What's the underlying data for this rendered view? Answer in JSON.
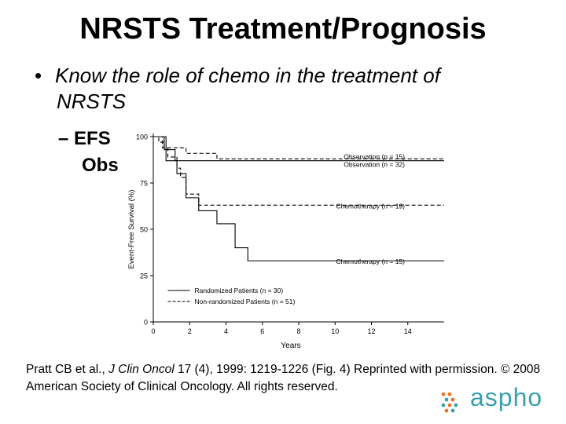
{
  "slide": {
    "title": "NRSTS Treatment/Prognosis",
    "bullet_marker": "•",
    "bullet_line1": "Know the role of chemo in the treatment of",
    "bullet_line2": "NRSTS",
    "sub_marker": "–",
    "sub_line1": "EFS",
    "sub_line2": "Obs",
    "citation": {
      "part1": "Pratt CB et al., ",
      "journal": "J Clin Oncol",
      "part2": " 17 (4), 1999: 1219-1226 (Fig. 4)  Reprinted with permission. © 2008 American Society of Clinical Oncology. All rights reserved."
    },
    "logo_text": "aspho",
    "colors": {
      "logo_teal": "#3aa0ae",
      "logo_orange": "#e8732a"
    }
  },
  "chart_data": {
    "type": "line",
    "xlabel": "Years",
    "ylabel": "Event-Free Survival (%)",
    "xlim": [
      0,
      16
    ],
    "ylim": [
      0,
      100
    ],
    "x_ticks": [
      0,
      2,
      4,
      6,
      8,
      10,
      12,
      14
    ],
    "y_ticks": [
      0,
      25,
      50,
      75,
      100
    ],
    "grid": false,
    "legend_position": "bottom-left",
    "legend": [
      {
        "label": "Randomized Patients (n = 30)",
        "style": "solid"
      },
      {
        "label": "Non-randomized Patients (n = 51)",
        "style": "dashed"
      }
    ],
    "series": [
      {
        "name": "Observation (n = 15)",
        "style": "solid",
        "x": [
          0,
          0.6,
          0.6,
          1.2,
          1.2,
          16
        ],
        "y": [
          100,
          100,
          93,
          93,
          87,
          87
        ]
      },
      {
        "name": "Observation (n = 32)",
        "style": "dashed",
        "x": [
          0,
          0.3,
          0.3,
          0.6,
          0.6,
          1.8,
          1.8,
          3.5,
          3.5,
          16
        ],
        "y": [
          100,
          100,
          97,
          97,
          94,
          94,
          91,
          91,
          88,
          88
        ]
      },
      {
        "name": "Chemotherapy (n = 19)",
        "style": "dashed",
        "x": [
          0,
          0.5,
          0.5,
          0.8,
          0.8,
          1.3,
          1.3,
          1.5,
          1.5,
          1.8,
          1.8,
          2.5,
          2.5,
          16
        ],
        "y": [
          100,
          100,
          94,
          94,
          89,
          89,
          83,
          83,
          78,
          78,
          69,
          69,
          63,
          63
        ]
      },
      {
        "name": "Chemotherapy (n = 15)",
        "style": "solid",
        "x": [
          0,
          0.7,
          0.7,
          1.3,
          1.3,
          1.8,
          1.8,
          2.5,
          2.5,
          3.5,
          3.5,
          4.5,
          4.5,
          5.2,
          5.2,
          16
        ],
        "y": [
          100,
          100,
          87,
          87,
          80,
          80,
          67,
          67,
          60,
          60,
          53,
          53,
          40,
          40,
          33,
          33
        ]
      }
    ]
  }
}
